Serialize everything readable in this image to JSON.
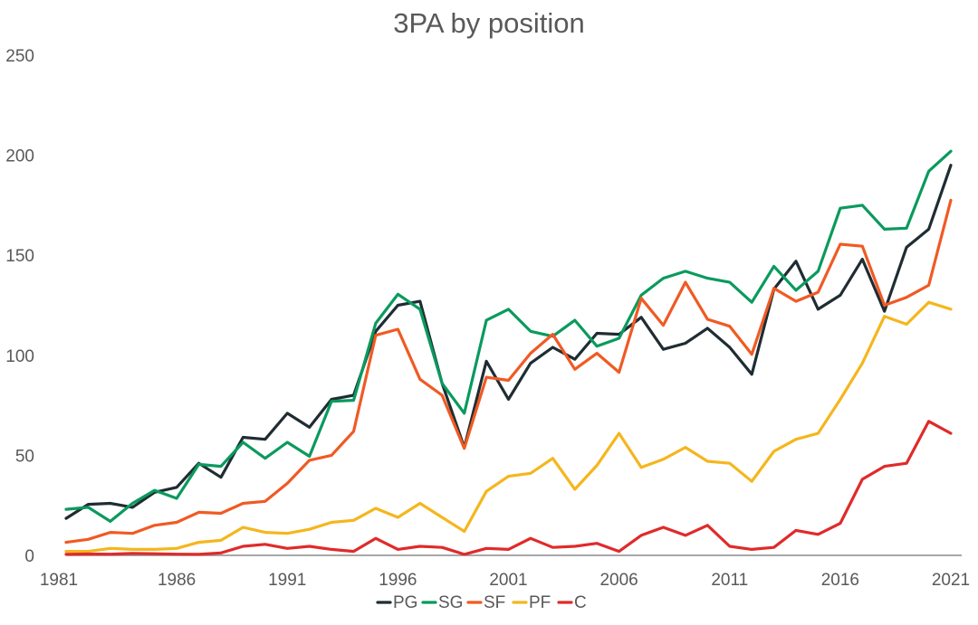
{
  "chart_data": {
    "type": "line",
    "title": "3PA by position",
    "xlabel": "",
    "ylabel": "",
    "ylim": [
      0,
      250
    ],
    "yticks": [
      "0",
      "50",
      "100",
      "150",
      "200",
      "250"
    ],
    "xlim": [
      1981,
      2021
    ],
    "xticks": [
      "1981",
      "1986",
      "1991",
      "1996",
      "2001",
      "2006",
      "2011",
      "2016",
      "2021"
    ],
    "x": [
      1981,
      1982,
      1983,
      1984,
      1985,
      1986,
      1987,
      1988,
      1989,
      1990,
      1991,
      1992,
      1993,
      1994,
      1995,
      1996,
      1997,
      1998,
      1999,
      2000,
      2001,
      2002,
      2003,
      2004,
      2005,
      2006,
      2007,
      2008,
      2009,
      2010,
      2011,
      2012,
      2013,
      2014,
      2015,
      2016,
      2017,
      2018,
      2019,
      2020,
      2021
    ],
    "grid": false,
    "legend_position": "bottom",
    "series": [
      {
        "name": "PG",
        "color": "#1f2d33",
        "values": [
          18.5,
          25.5,
          26,
          24,
          31.5,
          34,
          46,
          39,
          59,
          58,
          71,
          64,
          78,
          80,
          112,
          125,
          127,
          86,
          54,
          97,
          78,
          96,
          104,
          98,
          111,
          110.5,
          119,
          103,
          106,
          113.5,
          104,
          90.5,
          133,
          147,
          123,
          130,
          148,
          122,
          154,
          163,
          195
        ]
      },
      {
        "name": "SG",
        "color": "#0a9a5e",
        "values": [
          23,
          24,
          17,
          26,
          32.5,
          28.5,
          45.5,
          44.5,
          56.5,
          48.5,
          56.5,
          49.5,
          77,
          77.5,
          116,
          130.5,
          123,
          86,
          71,
          117.5,
          123,
          112,
          109.5,
          117.5,
          104.5,
          108.5,
          130,
          138.5,
          142,
          138.5,
          136.5,
          126.5,
          144.5,
          132.5,
          142,
          173.5,
          175,
          163,
          163.5,
          192,
          202
        ]
      },
      {
        "name": "SF",
        "color": "#f05a23",
        "values": [
          6.5,
          8,
          11.5,
          11,
          15,
          16.5,
          21.5,
          21,
          26,
          27,
          36,
          47.5,
          50,
          62,
          110,
          113,
          88,
          80,
          53.5,
          89,
          87.5,
          101,
          110.5,
          93,
          101,
          91.5,
          128.5,
          115,
          136.5,
          118,
          114.5,
          100.5,
          133.5,
          127,
          131.5,
          155.5,
          154.5,
          125,
          129,
          135,
          177.5
        ]
      },
      {
        "name": "PF",
        "color": "#f5b61d",
        "values": [
          2,
          2,
          3.5,
          3,
          3,
          3.5,
          6.5,
          7.5,
          14,
          11.5,
          11,
          13,
          16.5,
          17.5,
          23.5,
          19,
          26,
          19,
          12,
          32,
          39.5,
          41,
          48.5,
          33,
          45,
          61,
          44,
          48,
          54,
          47,
          46,
          37,
          52,
          58,
          61,
          78,
          96,
          119.5,
          115.5,
          126.5,
          123
        ]
      },
      {
        "name": "C",
        "color": "#e02a2a",
        "values": [
          0.5,
          0.7,
          0.6,
          1,
          0.8,
          0.6,
          0.5,
          1.2,
          4.5,
          5.5,
          3.5,
          4.5,
          3,
          2,
          8.5,
          3,
          4.5,
          4,
          0.5,
          3.5,
          3,
          8.5,
          4,
          4.5,
          6,
          2,
          10,
          14,
          10,
          15,
          4.5,
          3,
          4,
          12.5,
          10.5,
          16,
          38,
          44.5,
          46,
          67,
          61
        ]
      }
    ]
  }
}
